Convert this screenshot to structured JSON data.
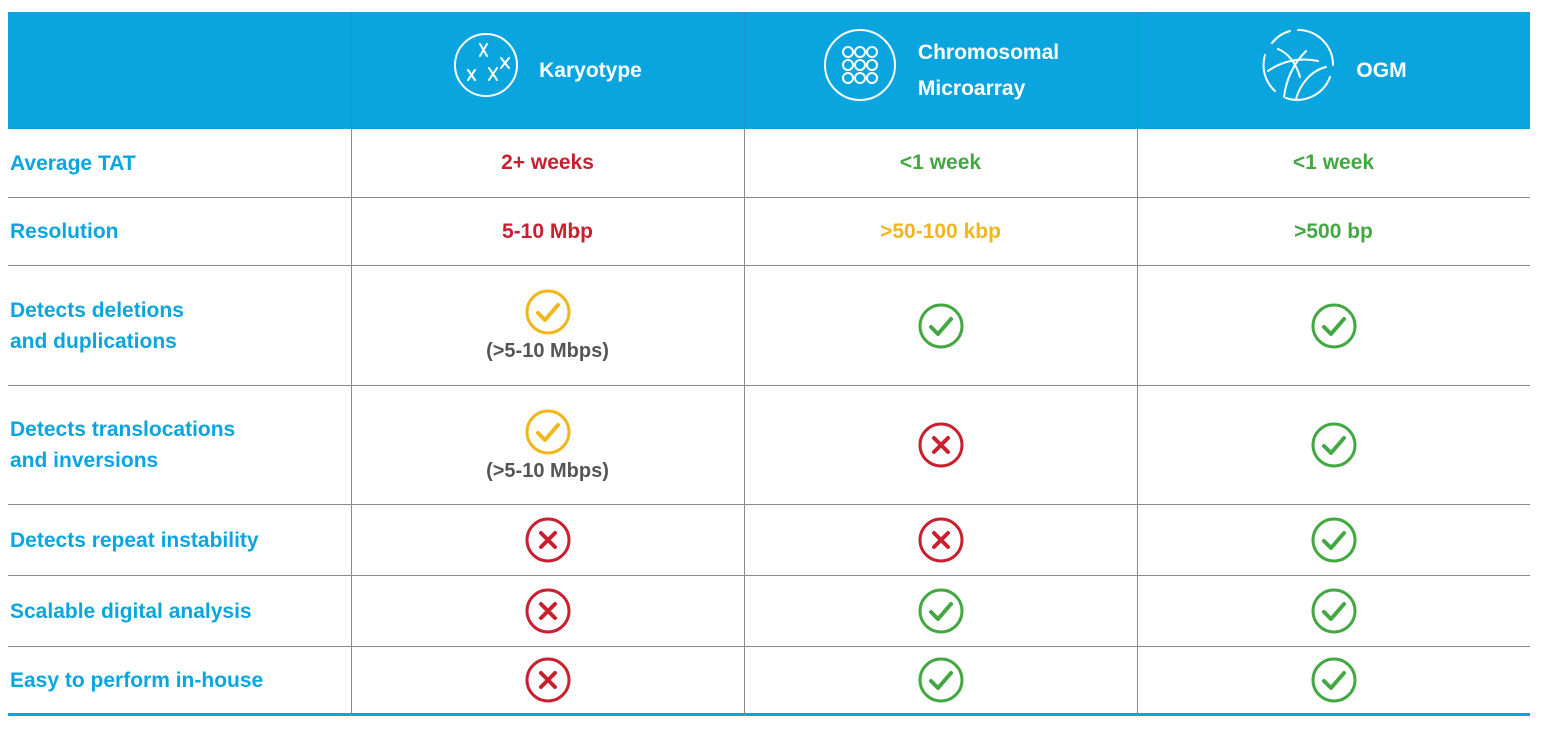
{
  "header": {
    "columns": [
      {
        "label_line1": "Karyotype",
        "label_line2": "",
        "icon": "chromosome-icon"
      },
      {
        "label_line1": "Chromosomal",
        "label_line2": "Microarray",
        "icon": "microarray-icon"
      },
      {
        "label_line1": "OGM",
        "label_line2": "",
        "icon": "genome-map-icon"
      }
    ]
  },
  "colors": {
    "header_bg": "#0aa5df",
    "label_blue": "#0aa5df",
    "red": "#c8202f",
    "green": "#43a842",
    "yellow": "#f2b61c",
    "note_gray": "#555555"
  },
  "rows": [
    {
      "label_line1": "Average TAT",
      "label_line2": "",
      "cells": [
        {
          "type": "text",
          "text": "2+ weeks",
          "color": "red"
        },
        {
          "type": "text",
          "text": "<1 week",
          "color": "green"
        },
        {
          "type": "text",
          "text": "<1 week",
          "color": "green"
        }
      ]
    },
    {
      "label_line1": "Resolution",
      "label_line2": "",
      "cells": [
        {
          "type": "text",
          "text": "5-10 Mbp",
          "color": "red"
        },
        {
          "type": "text",
          "text": ">50-100 kbp",
          "color": "yellow"
        },
        {
          "type": "text",
          "text": ">500 bp",
          "color": "green"
        }
      ]
    },
    {
      "label_line1": "Detects deletions",
      "label_line2": "and duplications",
      "cells": [
        {
          "type": "check",
          "color": "yellow",
          "note": "(>5-10 Mbps)"
        },
        {
          "type": "check",
          "color": "green",
          "note": ""
        },
        {
          "type": "check",
          "color": "green",
          "note": ""
        }
      ]
    },
    {
      "label_line1": "Detects translocations",
      "label_line2": "and inversions",
      "cells": [
        {
          "type": "check",
          "color": "yellow",
          "note": "(>5-10 Mbps)"
        },
        {
          "type": "cross",
          "color": "red",
          "note": ""
        },
        {
          "type": "check",
          "color": "green",
          "note": ""
        }
      ]
    },
    {
      "label_line1": "Detects repeat instability",
      "label_line2": "",
      "cells": [
        {
          "type": "cross",
          "color": "red",
          "note": ""
        },
        {
          "type": "cross",
          "color": "red",
          "note": ""
        },
        {
          "type": "check",
          "color": "green",
          "note": ""
        }
      ]
    },
    {
      "label_line1": "Scalable digital analysis",
      "label_line2": "",
      "cells": [
        {
          "type": "cross",
          "color": "red",
          "note": ""
        },
        {
          "type": "check",
          "color": "green",
          "note": ""
        },
        {
          "type": "check",
          "color": "green",
          "note": ""
        }
      ]
    },
    {
      "label_line1": "Easy to perform in-house",
      "label_line2": "",
      "cells": [
        {
          "type": "cross",
          "color": "red",
          "note": ""
        },
        {
          "type": "check",
          "color": "green",
          "note": ""
        },
        {
          "type": "check",
          "color": "green",
          "note": ""
        }
      ]
    }
  ]
}
